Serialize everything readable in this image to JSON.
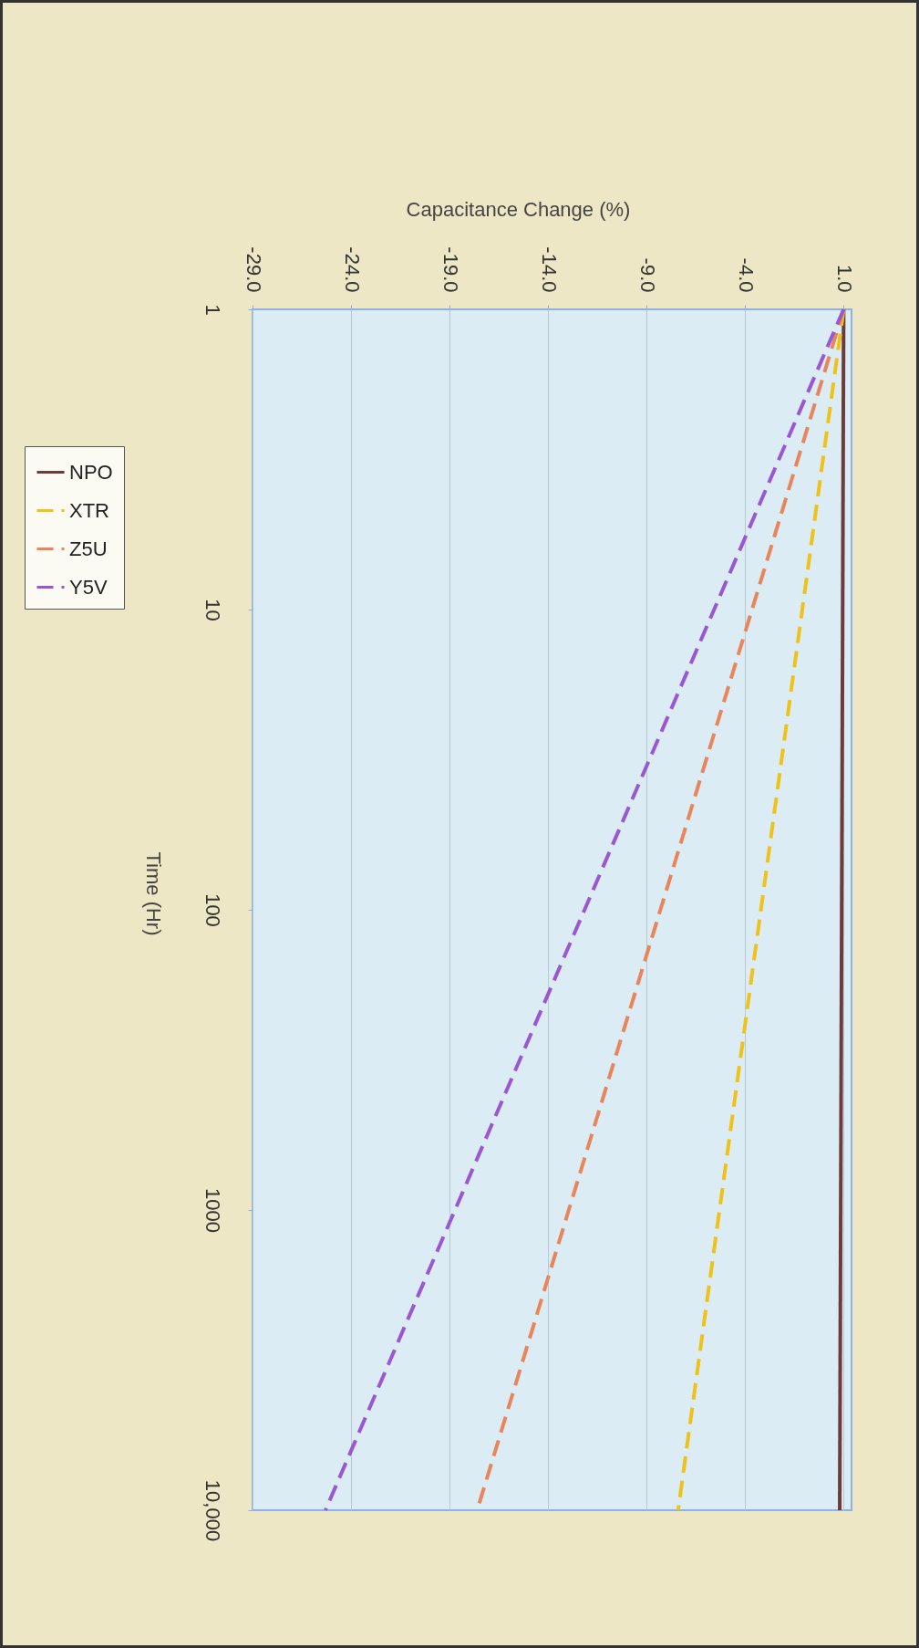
{
  "chart_data": {
    "type": "line",
    "xlabel": "Capacitance Change (%)",
    "ylabel": "Time (Hr)",
    "log": "y",
    "grid": "x",
    "legend": "left",
    "xlim": [
      -29,
      1.4
    ],
    "xticks": [
      {
        "value": -29,
        "label": "-29.0"
      },
      {
        "value": -24,
        "label": "-24.0"
      },
      {
        "value": -19,
        "label": "-19.0"
      },
      {
        "value": -14,
        "label": "-14.0"
      },
      {
        "value": -9,
        "label": "-9.0"
      },
      {
        "value": -4,
        "label": "-4.0"
      },
      {
        "value": 1,
        "label": "1.0"
      }
    ],
    "ylim": [
      10000,
      1
    ],
    "yticks": [
      1,
      10,
      100,
      1000,
      {
        "value": 10000,
        "label": "10,000"
      }
    ],
    "series": [
      {
        "name": "NPO",
        "color": "#6e3b3b",
        "line_style": "solid",
        "x": [
          1,
          0.8
        ],
        "values": [
          1,
          10000
        ]
      },
      {
        "name": "XTR",
        "color": "#efc21a",
        "line_style": "dashed",
        "x": [
          1,
          -7.4
        ],
        "values": [
          1,
          10000
        ]
      },
      {
        "name": "Z5U",
        "color": "#e8855a",
        "line_style": "dashed",
        "x": [
          1,
          -17.6
        ],
        "values": [
          1,
          10000
        ]
      },
      {
        "name": "Y5V",
        "color": "#9b57d2",
        "line_style": "dashed",
        "x": [
          1,
          -25.3
        ],
        "values": [
          1,
          10000
        ]
      }
    ]
  }
}
